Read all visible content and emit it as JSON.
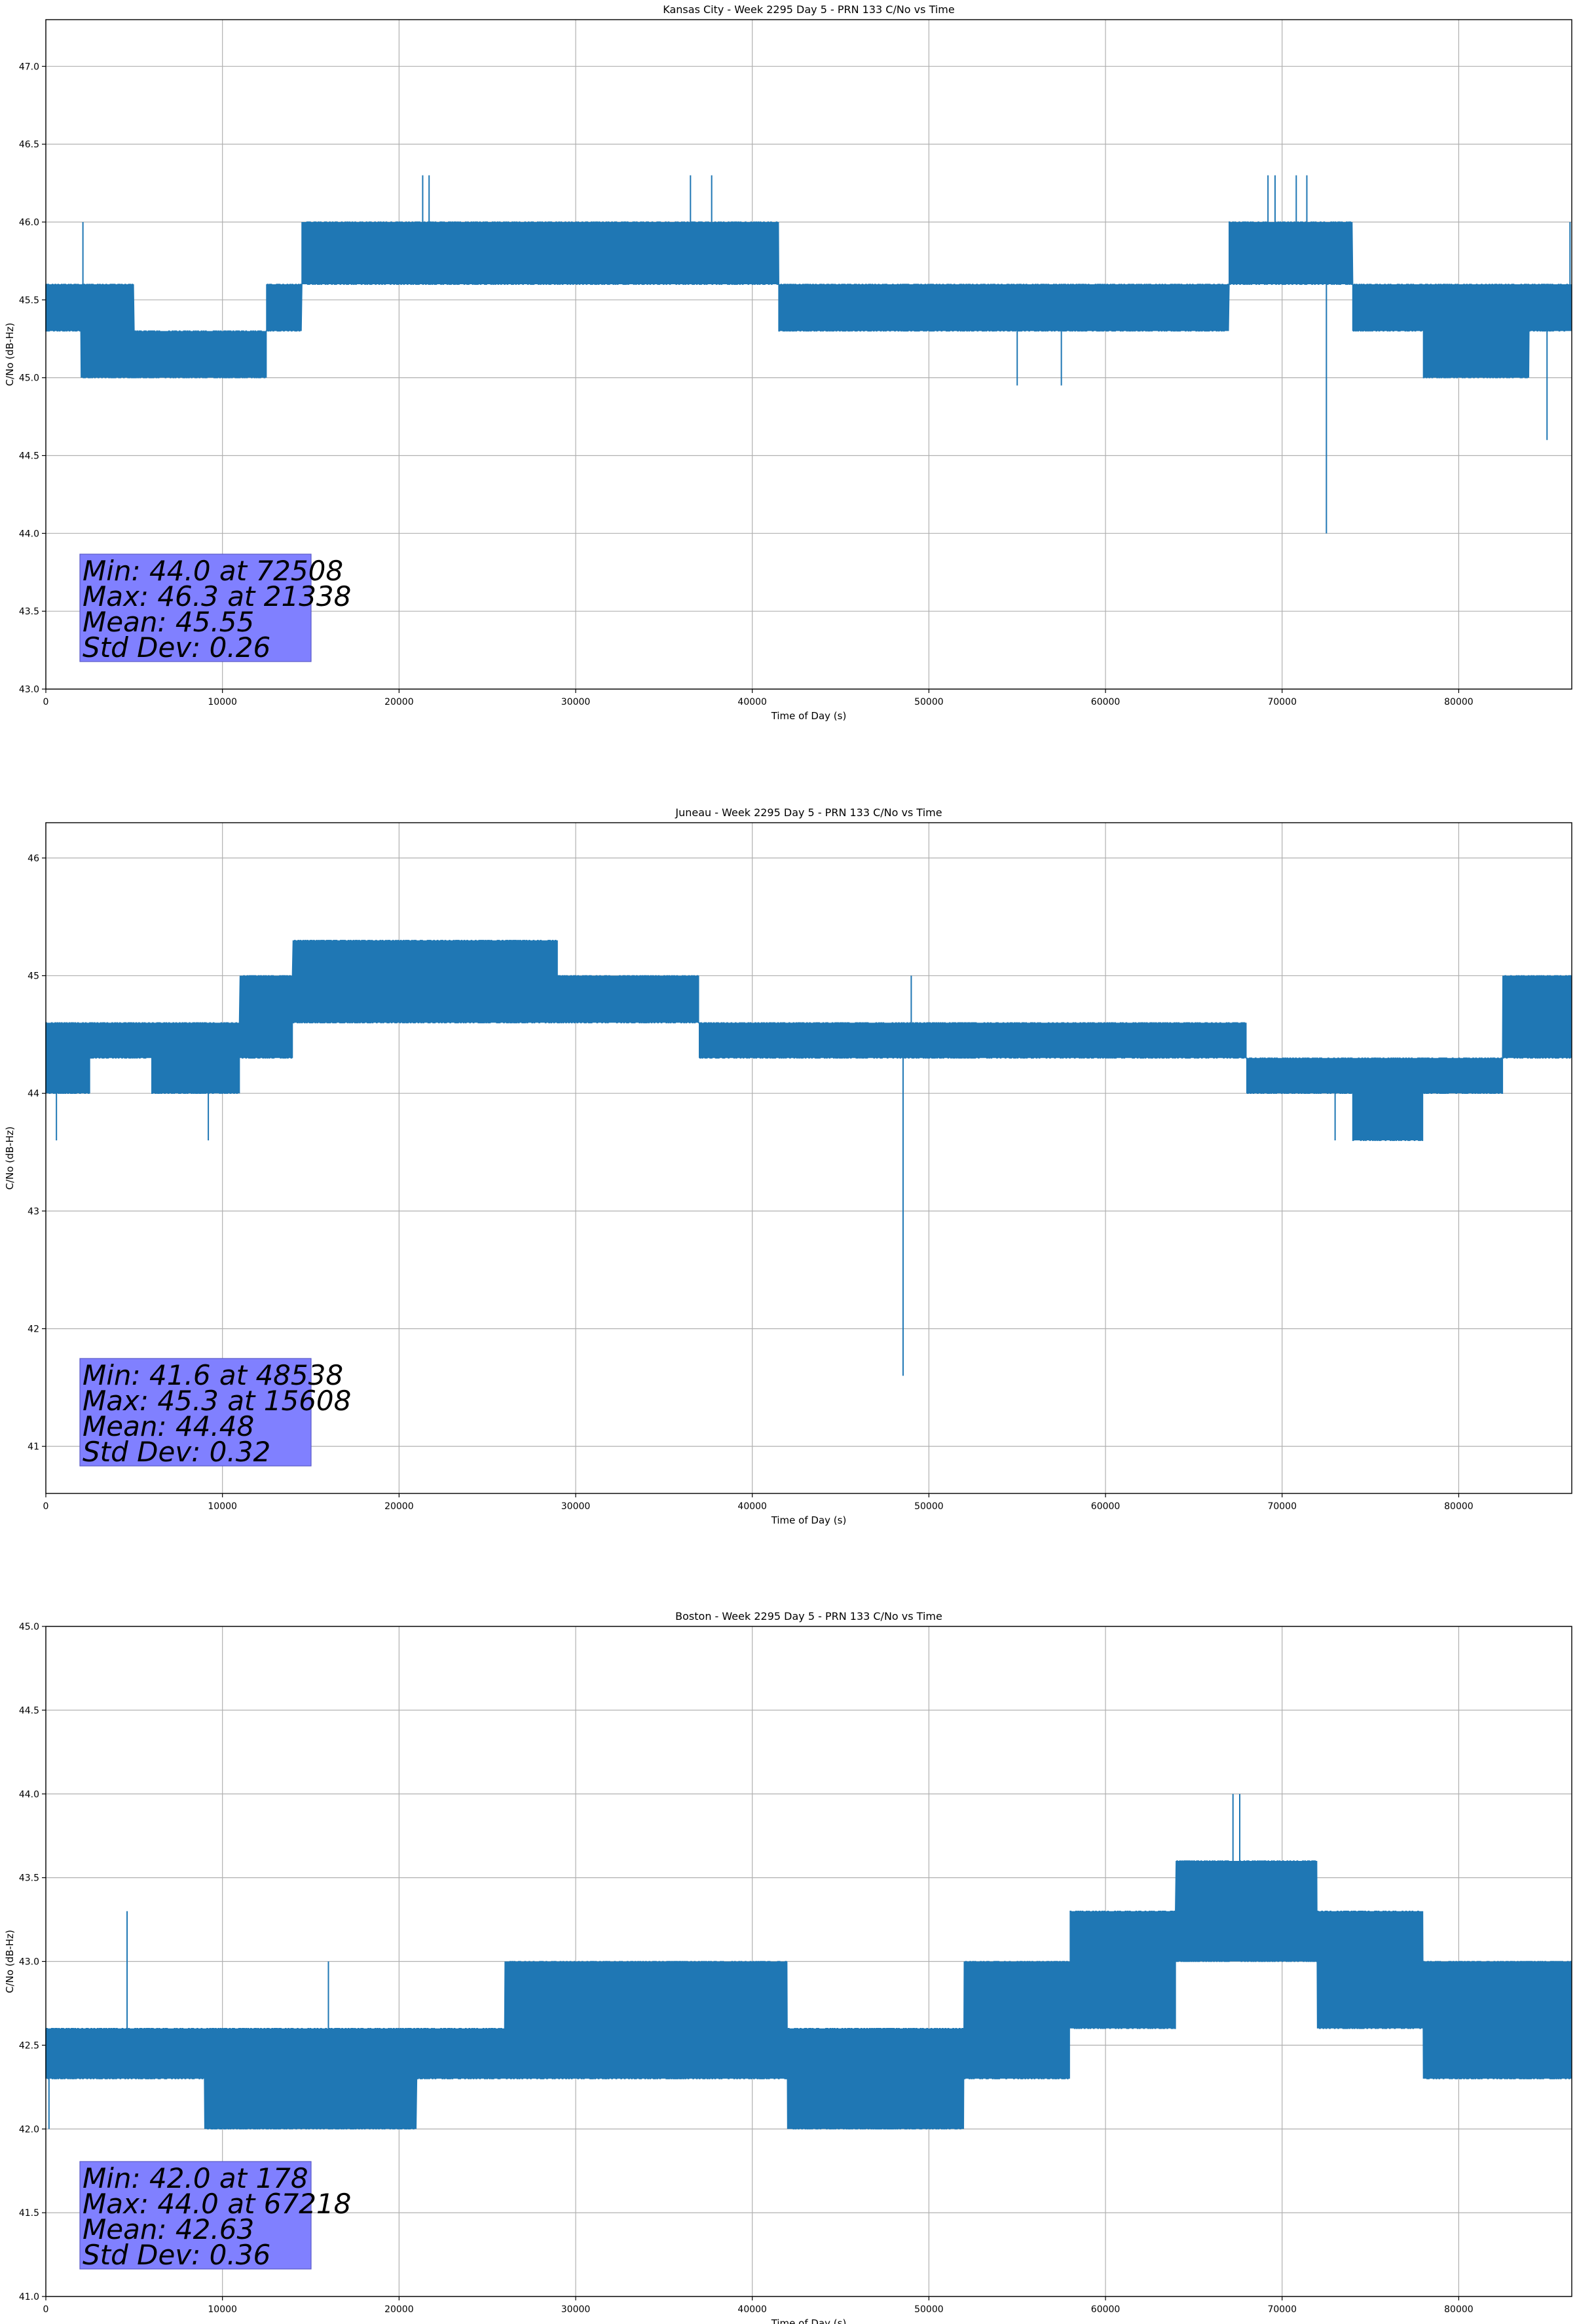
{
  "chart_data": [
    {
      "type": "line",
      "title": "Kansas City - Week 2295 Day 5 - PRN 133 C/No vs Time",
      "xlabel": "Time of Day (s)",
      "ylabel": "C/No (dB-Hz)",
      "xlim": [
        0,
        86400
      ],
      "ylim": [
        43.0,
        47.3
      ],
      "xticks": [
        0,
        10000,
        20000,
        30000,
        40000,
        50000,
        60000,
        70000,
        80000
      ],
      "yticks": [
        43.0,
        43.5,
        44.0,
        44.5,
        45.0,
        45.5,
        46.0,
        46.5,
        47.0
      ],
      "ytick_labels": [
        "43.0",
        "43.5",
        "44.0",
        "44.5",
        "45.0",
        "45.5",
        "46.0",
        "46.5",
        "47.0"
      ],
      "grid": true,
      "color": "#1f77b4",
      "segments": [
        {
          "start": 0,
          "end": 2000,
          "low": 45.3,
          "high": 45.6
        },
        {
          "start": 2000,
          "end": 5000,
          "low": 45.0,
          "high": 45.6
        },
        {
          "start": 5000,
          "end": 12500,
          "low": 45.0,
          "high": 45.3
        },
        {
          "start": 12500,
          "end": 14500,
          "low": 45.3,
          "high": 45.6
        },
        {
          "start": 14500,
          "end": 22000,
          "low": 45.6,
          "high": 46.0
        },
        {
          "start": 22000,
          "end": 31000,
          "low": 45.6,
          "high": 46.0
        },
        {
          "start": 31000,
          "end": 41500,
          "low": 45.6,
          "high": 46.0
        },
        {
          "start": 41500,
          "end": 60000,
          "low": 45.3,
          "high": 45.6
        },
        {
          "start": 60000,
          "end": 67000,
          "low": 45.3,
          "high": 45.6
        },
        {
          "start": 67000,
          "end": 74000,
          "low": 45.6,
          "high": 46.0
        },
        {
          "start": 74000,
          "end": 78000,
          "low": 45.3,
          "high": 45.6
        },
        {
          "start": 78000,
          "end": 84000,
          "low": 45.0,
          "high": 45.6
        },
        {
          "start": 84000,
          "end": 86400,
          "low": 45.3,
          "high": 45.6
        }
      ],
      "spikes": [
        {
          "x": 2100,
          "y": 46.0
        },
        {
          "x": 21338,
          "y": 46.3
        },
        {
          "x": 21700,
          "y": 46.3
        },
        {
          "x": 36500,
          "y": 46.3
        },
        {
          "x": 37700,
          "y": 46.3
        },
        {
          "x": 55000,
          "y": 44.95
        },
        {
          "x": 57500,
          "y": 44.95
        },
        {
          "x": 69200,
          "y": 46.3
        },
        {
          "x": 69600,
          "y": 46.3
        },
        {
          "x": 70800,
          "y": 46.3
        },
        {
          "x": 71400,
          "y": 46.3
        },
        {
          "x": 72508,
          "y": 44.0
        },
        {
          "x": 85000,
          "y": 44.6
        },
        {
          "x": 86300,
          "y": 46.0
        }
      ],
      "stats": {
        "min": "Min: 44.0 at 72508",
        "max": "Max: 46.3 at 21338",
        "mean": "Mean: 45.55",
        "std": "Std Dev: 0.26"
      }
    },
    {
      "type": "line",
      "title": "Juneau - Week 2295 Day 5 - PRN 133 C/No vs Time",
      "xlabel": "Time of Day (s)",
      "ylabel": "C/No (dB-Hz)",
      "xlim": [
        0,
        86400
      ],
      "ylim": [
        40.6,
        46.3
      ],
      "xticks": [
        0,
        10000,
        20000,
        30000,
        40000,
        50000,
        60000,
        70000,
        80000
      ],
      "yticks": [
        41,
        42,
        43,
        44,
        45,
        46
      ],
      "ytick_labels": [
        "41",
        "42",
        "43",
        "44",
        "45",
        "46"
      ],
      "grid": true,
      "color": "#1f77b4",
      "segments": [
        {
          "start": 0,
          "end": 2500,
          "low": 44.0,
          "high": 44.6
        },
        {
          "start": 2500,
          "end": 6000,
          "low": 44.3,
          "high": 44.6
        },
        {
          "start": 6000,
          "end": 11000,
          "low": 44.0,
          "high": 44.6
        },
        {
          "start": 11000,
          "end": 14000,
          "low": 44.3,
          "high": 45.0
        },
        {
          "start": 14000,
          "end": 29000,
          "low": 44.6,
          "high": 45.3
        },
        {
          "start": 29000,
          "end": 37000,
          "low": 44.6,
          "high": 45.0
        },
        {
          "start": 37000,
          "end": 56000,
          "low": 44.3,
          "high": 44.6
        },
        {
          "start": 56000,
          "end": 68000,
          "low": 44.3,
          "high": 44.6
        },
        {
          "start": 68000,
          "end": 74000,
          "low": 44.0,
          "high": 44.3
        },
        {
          "start": 74000,
          "end": 78000,
          "low": 43.6,
          "high": 44.3
        },
        {
          "start": 78000,
          "end": 82500,
          "low": 44.0,
          "high": 44.3
        },
        {
          "start": 82500,
          "end": 86400,
          "low": 44.3,
          "high": 45.0
        }
      ],
      "spikes": [
        {
          "x": 600,
          "y": 43.6
        },
        {
          "x": 9200,
          "y": 43.6
        },
        {
          "x": 15608,
          "y": 45.3
        },
        {
          "x": 48538,
          "y": 41.6
        },
        {
          "x": 49000,
          "y": 45.0
        },
        {
          "x": 73000,
          "y": 43.6
        }
      ],
      "stats": {
        "min": "Min: 41.6 at 48538",
        "max": "Max: 45.3 at 15608",
        "mean": "Mean: 44.48",
        "std": "Std Dev: 0.32"
      }
    },
    {
      "type": "line",
      "title": "Boston - Week 2295 Day 5 - PRN 133 C/No vs Time",
      "xlabel": "Time of Day (s)",
      "ylabel": "C/No (dB-Hz)",
      "xlim": [
        0,
        86400
      ],
      "ylim": [
        41.0,
        45.0
      ],
      "xticks": [
        0,
        10000,
        20000,
        30000,
        40000,
        50000,
        60000,
        70000,
        80000
      ],
      "yticks": [
        41.0,
        41.5,
        42.0,
        42.5,
        43.0,
        43.5,
        44.0,
        44.5,
        45.0
      ],
      "ytick_labels": [
        "41.0",
        "41.5",
        "42.0",
        "42.5",
        "43.0",
        "43.5",
        "44.0",
        "44.5",
        "45.0"
      ],
      "grid": true,
      "color": "#1f77b4",
      "segments": [
        {
          "start": 0,
          "end": 9000,
          "low": 42.3,
          "high": 42.6
        },
        {
          "start": 9000,
          "end": 21000,
          "low": 42.0,
          "high": 42.6
        },
        {
          "start": 21000,
          "end": 26000,
          "low": 42.3,
          "high": 42.6
        },
        {
          "start": 26000,
          "end": 42000,
          "low": 42.3,
          "high": 43.0
        },
        {
          "start": 42000,
          "end": 52000,
          "low": 42.0,
          "high": 42.6
        },
        {
          "start": 52000,
          "end": 58000,
          "low": 42.3,
          "high": 43.0
        },
        {
          "start": 58000,
          "end": 64000,
          "low": 42.6,
          "high": 43.3
        },
        {
          "start": 64000,
          "end": 72000,
          "low": 43.0,
          "high": 43.6
        },
        {
          "start": 72000,
          "end": 78000,
          "low": 42.6,
          "high": 43.3
        },
        {
          "start": 78000,
          "end": 86400,
          "low": 42.3,
          "high": 43.0
        }
      ],
      "spikes": [
        {
          "x": 178,
          "y": 42.0
        },
        {
          "x": 4600,
          "y": 43.3
        },
        {
          "x": 16000,
          "y": 43.0
        },
        {
          "x": 67218,
          "y": 44.0
        },
        {
          "x": 67600,
          "y": 44.0
        }
      ],
      "stats": {
        "min": "Min: 42.0 at 178",
        "max": "Max: 44.0 at 67218",
        "mean": "Mean: 42.63",
        "std": "Std Dev: 0.36"
      }
    }
  ]
}
